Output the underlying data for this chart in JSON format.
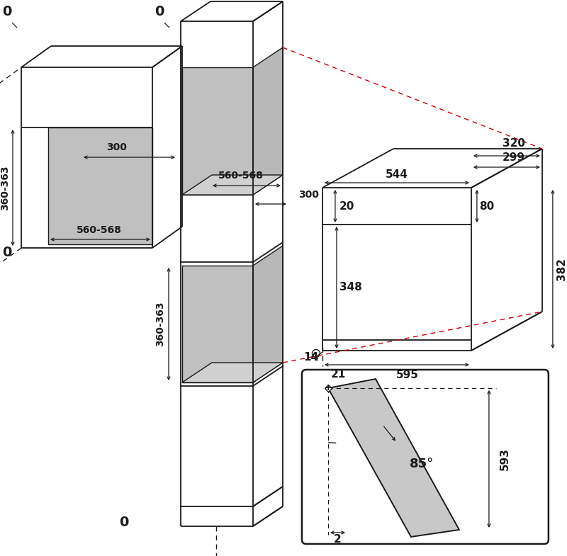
{
  "bg_color": "#ffffff",
  "line_color": "#1a1a1a",
  "gray_fill": "#c0c0c0",
  "gray_fill2": "#b8b8b8",
  "gray_fill3": "#d0d0d0",
  "red_dash": "#cc0000",
  "dim_fontsize": 10,
  "label_fontsize": 11
}
